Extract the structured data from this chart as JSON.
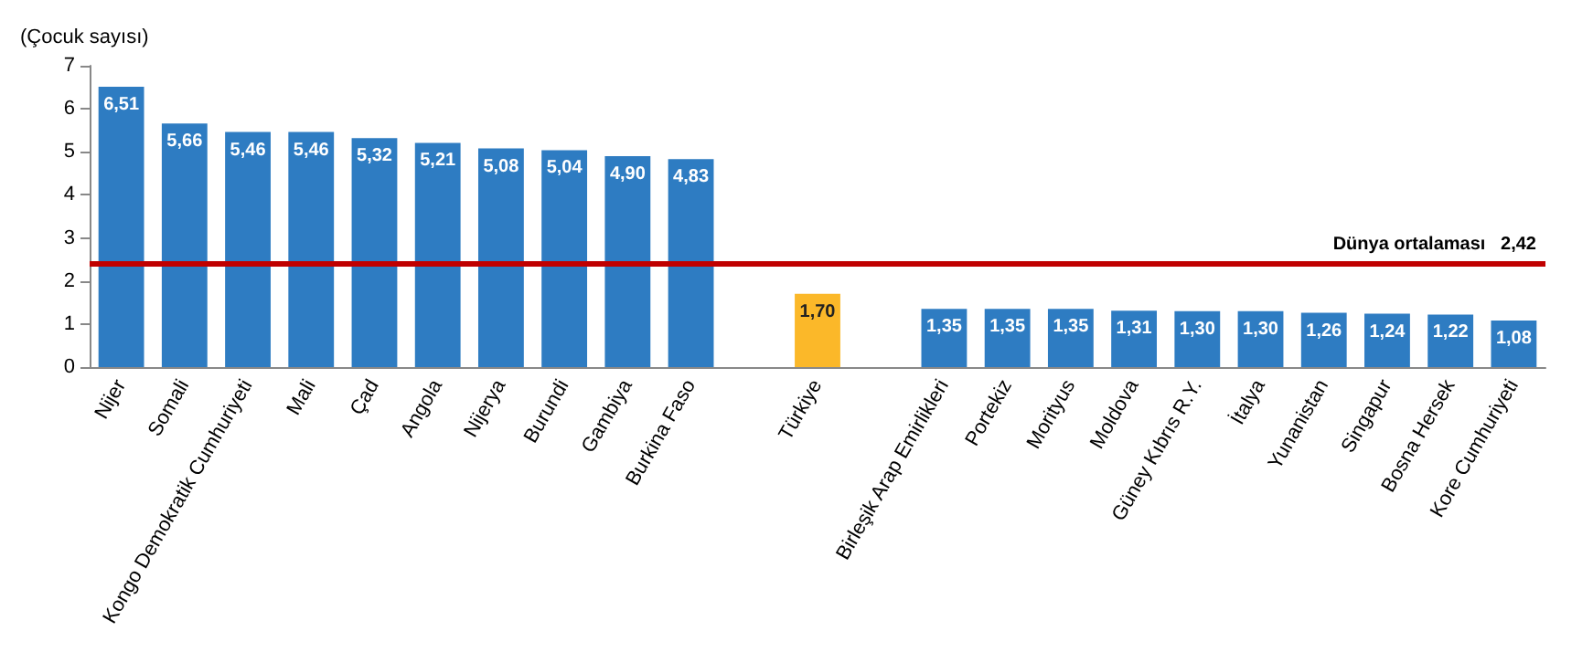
{
  "chart_data": {
    "type": "bar",
    "ylabel": "(Çocuk sayısı)",
    "categories": [
      "Nijer",
      "Somali",
      "Kongo Demokratik Cumhuriyeti",
      "Mali",
      "Çad",
      "Angola",
      "Nijerya",
      "Burundi",
      "Gambiya",
      "Burkina Faso",
      null,
      "Türkiye",
      null,
      "Birleşik Arap Emirlikleri",
      "Portekiz",
      "Morityus",
      "Moldova",
      "Güney Kıbrıs R.Y.",
      "İtalya",
      "Yunanistan",
      "Singapur",
      "Bosna Hersek",
      "Kore Cumhuriyeti"
    ],
    "values": [
      6.51,
      5.66,
      5.46,
      5.46,
      5.32,
      5.21,
      5.08,
      5.04,
      4.9,
      4.83,
      null,
      1.7,
      null,
      1.35,
      1.35,
      1.35,
      1.31,
      1.3,
      1.3,
      1.26,
      1.24,
      1.22,
      1.08
    ],
    "value_labels": [
      "6,51",
      "5,66",
      "5,46",
      "5,46",
      "5,32",
      "5,21",
      "5,08",
      "5,04",
      "4,90",
      "4,83",
      null,
      "1,70",
      null,
      "1,35",
      "1,35",
      "1,35",
      "1,31",
      "1,30",
      "1,30",
      "1,26",
      "1,24",
      "1,22",
      "1,08"
    ],
    "colors": [
      "#2e7cc2",
      "#2e7cc2",
      "#2e7cc2",
      "#2e7cc2",
      "#2e7cc2",
      "#2e7cc2",
      "#2e7cc2",
      "#2e7cc2",
      "#2e7cc2",
      "#2e7cc2",
      null,
      "#fbb829",
      null,
      "#2e7cc2",
      "#2e7cc2",
      "#2e7cc2",
      "#2e7cc2",
      "#2e7cc2",
      "#2e7cc2",
      "#2e7cc2",
      "#2e7cc2",
      "#2e7cc2",
      "#2e7cc2"
    ],
    "ylim": [
      0,
      7
    ],
    "yticks": [
      0,
      1,
      2,
      3,
      4,
      5,
      6,
      7
    ],
    "grid": false,
    "ref_lines": [
      {
        "axis": "y",
        "value": 2.42,
        "label": "Dünya ortalaması   2,42",
        "color": "#c00000"
      }
    ]
  }
}
